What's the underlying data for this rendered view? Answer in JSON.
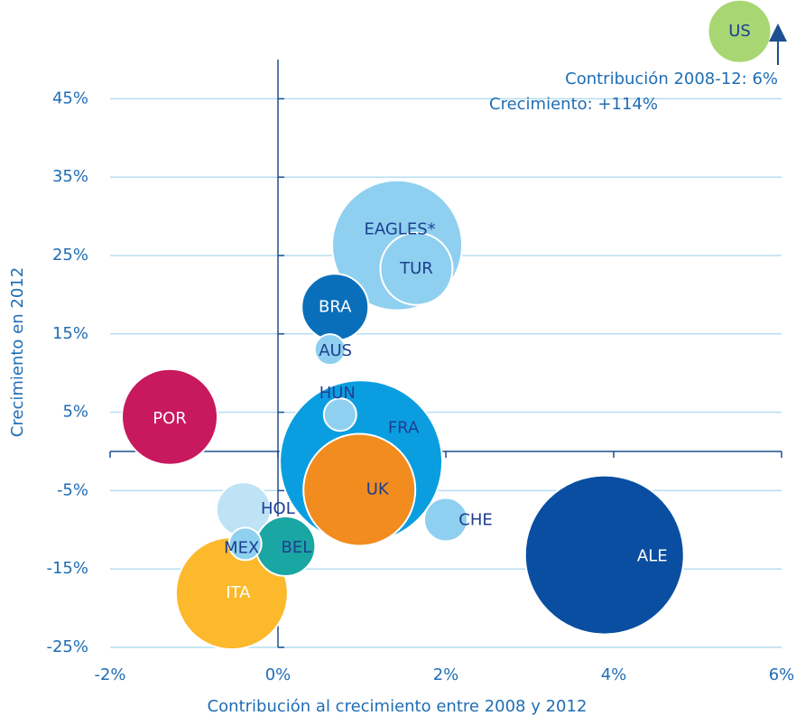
{
  "chart_data": {
    "type": "bubble",
    "xlabel": "Contribución al crecimiento entre 2008 y 2012",
    "ylabel": "Crecimiento en 2012",
    "annotations": [
      "Contribución  2008-12:  6%",
      "Crecimiento: +114%"
    ],
    "xlim": [
      -2,
      6
    ],
    "ylim": [
      -25,
      50
    ],
    "xticks": [
      {
        "value": -2,
        "label": "-2%"
      },
      {
        "value": 0,
        "label": "0%"
      },
      {
        "value": 2,
        "label": "2%"
      },
      {
        "value": 4,
        "label": "4%"
      },
      {
        "value": 6,
        "label": "6%"
      }
    ],
    "yticks": [
      {
        "value": -25,
        "label": "-25%"
      },
      {
        "value": -15,
        "label": "-15%"
      },
      {
        "value": -5,
        "label": "-5%"
      },
      {
        "value": 5,
        "label": "5%"
      },
      {
        "value": 15,
        "label": "15%"
      },
      {
        "value": 25,
        "label": "25%"
      },
      {
        "value": 35,
        "label": "35%"
      },
      {
        "value": 45,
        "label": "45%"
      }
    ],
    "grid": true,
    "points": [
      {
        "label": "EAGLES*",
        "x": 1.42,
        "y": 26.3,
        "size": 72,
        "color": "#8fd0f0",
        "label_color": "#1d3f8f"
      },
      {
        "label": "TUR",
        "x": 1.65,
        "y": 23.3,
        "size": 40,
        "color": "#8fd0f0",
        "label_color": "#1d3f8f"
      },
      {
        "label": "US",
        "x": 5.5,
        "y": 53.6,
        "size": 35,
        "color": "#a8d672",
        "label_color": "#1d3f8f"
      },
      {
        "label": "BRA",
        "x": 0.68,
        "y": 18.4,
        "size": 37,
        "color": "#0a6fba",
        "label_color": "#ffffff"
      },
      {
        "label": "AUS",
        "x": 0.62,
        "y": 13,
        "size": 17,
        "color": "#8fd0f0",
        "label_color": "#1d3f8f"
      },
      {
        "label": "POR",
        "x": -1.29,
        "y": 4.4,
        "size": 53,
        "color": "#c8185e",
        "label_color": "#ffffff"
      },
      {
        "label": "FRA",
        "x": 0.99,
        "y": -1.3,
        "size": 90,
        "color": "#0a9ee0",
        "label_color": "#1d3f8f"
      },
      {
        "label": "UK",
        "x": 0.97,
        "y": -4.9,
        "size": 62,
        "color": "#f28c1f",
        "label_color": "#1d3f8f"
      },
      {
        "label": "HUN",
        "x": 0.74,
        "y": 4.7,
        "size": 18,
        "color": "#8fd0f0",
        "label_color": "#1d3f8f"
      },
      {
        "label": "ALE",
        "x": 3.89,
        "y": -13.2,
        "size": 88,
        "color": "#0a4ea2",
        "label_color": "#ffffff"
      },
      {
        "label": "CHE",
        "x": 2.0,
        "y": -8.7,
        "size": 24,
        "color": "#8fd0f0",
        "label_color": "#1d3f8f"
      },
      {
        "label": "ITA",
        "x": -0.55,
        "y": -18.1,
        "size": 62,
        "color": "#fbb92b",
        "label_color": "#ffffff"
      },
      {
        "label": "HOL",
        "x": -0.41,
        "y": -7.4,
        "size": 30,
        "color": "#bde3f5",
        "label_color": "#1d3f8f"
      },
      {
        "label": "BEL",
        "x": 0.09,
        "y": -12.1,
        "size": 33,
        "color": "#1aa6a2",
        "label_color": "#1d3f8f"
      },
      {
        "label": "MEX",
        "x": -0.39,
        "y": -11.8,
        "size": 18,
        "color": "#8fd0f0",
        "label_color": "#1d3f8f"
      }
    ]
  }
}
